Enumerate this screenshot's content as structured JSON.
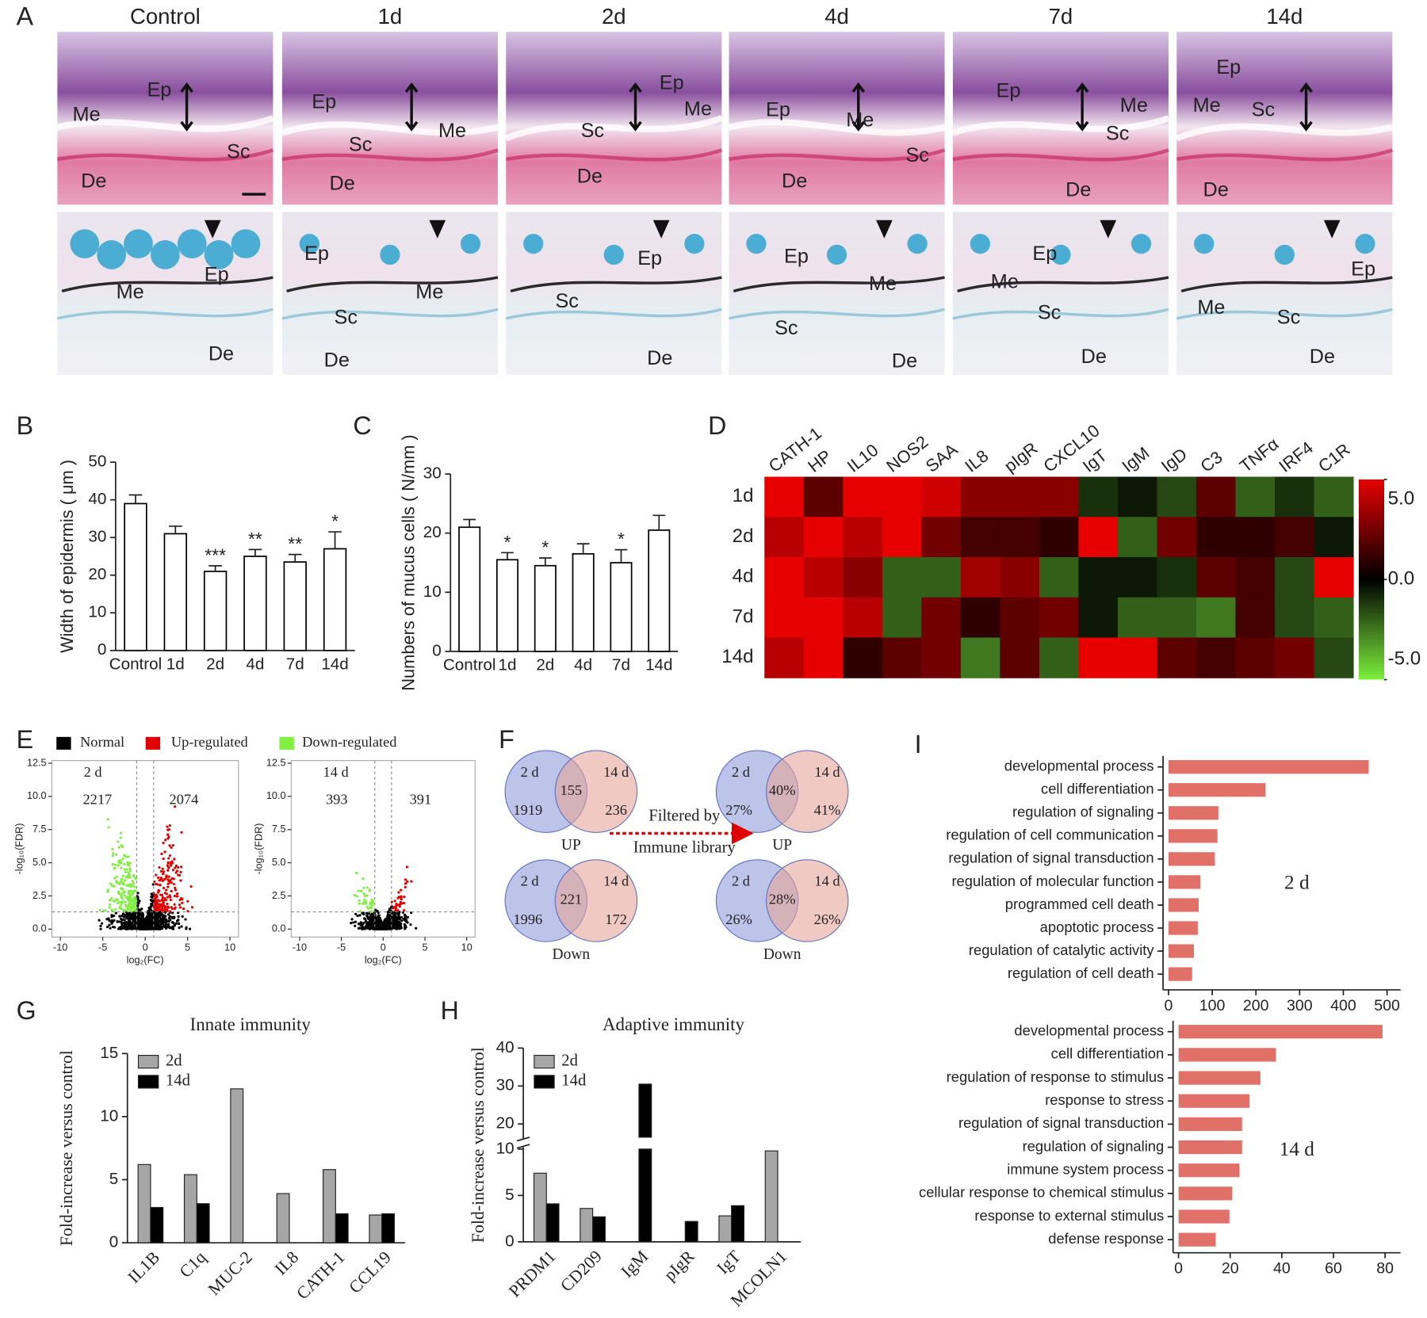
{
  "panel_A": {
    "label": "A",
    "columns": [
      "Control",
      "1d",
      "2d",
      "4d",
      "7d",
      "14d"
    ],
    "top_labels": [
      [
        "Ep",
        "Me",
        "Sc",
        "De"
      ],
      [
        "Ep",
        "Sc",
        "Me",
        "De"
      ],
      [
        "Ep",
        "Me",
        "Sc",
        "De"
      ],
      [
        "Ep",
        "Me",
        "Sc",
        "De"
      ],
      [
        "Ep",
        "Me",
        "Sc",
        "De"
      ],
      [
        "Ep",
        "Me",
        "Sc",
        "De"
      ]
    ],
    "bottom_labels": [
      [
        "Ep",
        "Me",
        "De"
      ],
      [
        "Ep",
        "Me",
        "Sc",
        "De"
      ],
      [
        "Ep",
        "Sc",
        "De"
      ],
      [
        "Ep",
        "Me",
        "Sc",
        "De"
      ],
      [
        "Ep",
        "Me",
        "Sc",
        "De"
      ],
      [
        "Ep",
        "Me",
        "Sc",
        "De"
      ]
    ]
  },
  "panel_F": {
    "label": "F",
    "arrow_text": [
      "Filtered by",
      "Immune library"
    ],
    "venns": [
      {
        "left": "2 d",
        "right": "14 d",
        "left_only": 1919,
        "both": 155,
        "right_only": 236,
        "caption": "UP"
      },
      {
        "left": "2 d",
        "right": "14 d",
        "left_only": 1996,
        "both": 221,
        "right_only": 172,
        "caption": "Down"
      },
      {
        "left": "2 d",
        "right": "14 d",
        "left_only": "27%",
        "both": "40%",
        "right_only": "41%",
        "caption": "UP"
      },
      {
        "left": "2 d",
        "right": "14 d",
        "left_only": "26%",
        "both": "28%",
        "right_only": "26%",
        "caption": "Down"
      }
    ]
  },
  "chart_data": [
    {
      "panel": "B",
      "type": "bar",
      "y_label": "Width of epidermis ( μm )",
      "categories": [
        "Control",
        "1d",
        "2d",
        "4d",
        "7d",
        "14d"
      ],
      "values": [
        39,
        31,
        21,
        25,
        23.5,
        27
      ],
      "errors": [
        2.3,
        2,
        1.5,
        1.8,
        2,
        4.5
      ],
      "significance": [
        null,
        null,
        "***",
        "**",
        "**",
        "*"
      ],
      "color": "#ffffff",
      "edgecolor": "#000000",
      "ylim": [
        0,
        50
      ],
      "yticks": [
        0,
        10,
        20,
        30,
        40,
        50
      ]
    },
    {
      "panel": "C",
      "type": "bar",
      "y_label": "Numbers of mucus cells ( N/mm )",
      "categories": [
        "Control",
        "1d",
        "2d",
        "4d",
        "7d",
        "14d"
      ],
      "values": [
        21,
        15.5,
        14.5,
        16.5,
        15,
        20.5
      ],
      "errors": [
        1.3,
        1.2,
        1.3,
        1.7,
        2.2,
        2.5
      ],
      "significance": [
        null,
        "*",
        "*",
        null,
        "*",
        null
      ],
      "color": "#ffffff",
      "edgecolor": "#000000",
      "ylim": [
        0,
        30
      ],
      "yticks": [
        0,
        10,
        20,
        30
      ]
    },
    {
      "panel": "D",
      "type": "heatmap",
      "rows": [
        "1d",
        "2d",
        "4d",
        "7d",
        "14d"
      ],
      "columns": [
        "CATH-1",
        "HP",
        "IL10",
        "NOS2",
        "SAA",
        "IL8",
        "pIgR",
        "CXCL10",
        "IgT",
        "IgM",
        "IgD",
        "C3",
        "TNFα",
        "IRF4",
        "C1R"
      ],
      "values": [
        [
          5,
          2,
          5,
          5,
          4.5,
          3,
          3,
          3,
          -1,
          -0.5,
          -1.5,
          2,
          -2,
          -1,
          -2
        ],
        [
          4,
          5,
          4,
          5,
          2.5,
          1.5,
          1.5,
          1,
          5,
          -2,
          2.5,
          1,
          1,
          1.5,
          -0.5
        ],
        [
          5,
          4,
          3,
          -2,
          -2,
          3.5,
          3,
          -2,
          -0.5,
          -0.5,
          -1,
          2,
          1.5,
          -1.5,
          5
        ],
        [
          5,
          5,
          4,
          -2,
          2.5,
          1,
          2,
          2.5,
          -0.5,
          -2,
          -2,
          -2.5,
          1.5,
          -1.5,
          -2
        ],
        [
          4,
          5,
          1,
          2,
          2.5,
          -2.5,
          2,
          -2,
          5,
          5,
          2,
          1.5,
          2,
          2.5,
          -1.5
        ]
      ],
      "colorbar": {
        "lim": [
          -5,
          5
        ],
        "colors": [
          "#7df03c",
          "#000000",
          "#e60000"
        ],
        "ticks": [
          {
            "value": 5,
            "label": "5.0"
          },
          {
            "value": 0,
            "label": "0.0"
          },
          {
            "value": -5,
            "label": "-5.0"
          }
        ]
      }
    },
    {
      "panel": "E",
      "type": "volcano",
      "legend": [
        {
          "name": "Normal",
          "color": "#000000"
        },
        {
          "name": "Up-regulated",
          "color": "#e00000"
        },
        {
          "name": "Down-regulated",
          "color": "#80f040"
        }
      ],
      "plots": [
        {
          "title": "2 d",
          "down_count": 2217,
          "up_count": 2074
        },
        {
          "title": "14 d",
          "down_count": 393,
          "up_count": 391
        }
      ],
      "x_label": "log₂(FC)",
      "y_label": "-log₁₀(FDR)",
      "fc_threshold": [
        -1,
        1
      ],
      "fdr_threshold": 1.3,
      "xlim": [
        -11,
        11
      ],
      "xticks": [
        -10,
        -5,
        0,
        5,
        10
      ],
      "ylim": [
        -0.6,
        12.7
      ],
      "yticks": [
        {
          "value": 0,
          "label": "0.0"
        },
        {
          "value": 2.5,
          "label": "2.5"
        },
        {
          "value": 5,
          "label": "5.0"
        },
        {
          "value": 7.5,
          "label": "7.5"
        },
        {
          "value": 10,
          "label": "10.0"
        },
        {
          "value": 12.5,
          "label": "12.5"
        }
      ]
    },
    {
      "panel": "G",
      "type": "grouped_bar",
      "title": "Innate immunity",
      "y_label": "Fold-increase versus control",
      "categories": [
        "IL1B",
        "C1q",
        "MUC-2",
        "IL8",
        "CATH-1",
        "CCL19"
      ],
      "series": [
        {
          "name": "2d",
          "color": "#a6a6a6",
          "values": [
            6.2,
            5.4,
            12.2,
            3.9,
            5.8,
            2.2
          ]
        },
        {
          "name": "14d",
          "color": "#000000",
          "values": [
            2.8,
            3.1,
            null,
            null,
            2.3,
            2.3
          ]
        }
      ],
      "ylim": [
        0,
        15
      ],
      "yticks": [
        0,
        5,
        10,
        15
      ]
    },
    {
      "panel": "H",
      "type": "grouped_bar",
      "title": "Adaptive immunity",
      "y_label": "Fold-increase versus control",
      "categories": [
        "PRDM1",
        "CD209",
        "IgM",
        "pIgR",
        "IgT",
        "MCOLN1"
      ],
      "series": [
        {
          "name": "2d",
          "color": "#a6a6a6",
          "values": [
            7.4,
            3.6,
            null,
            null,
            2.8,
            9.8
          ]
        },
        {
          "name": "14d",
          "color": "#000000",
          "values": [
            4.1,
            2.7,
            30.5,
            2.2,
            3.9,
            null
          ]
        }
      ],
      "ylim": [
        0,
        40
      ],
      "y_break": [
        10,
        16.5
      ],
      "yticks": [
        0,
        5,
        10,
        20,
        30,
        40
      ]
    },
    {
      "panel": "I",
      "type": "barh",
      "annotation": "2 d",
      "color": "#e07068",
      "categories": [
        "developmental process",
        "cell differentiation",
        "regulation of signaling",
        "regulation of cell communication",
        "regulation of signal transduction",
        "regulation of molecular function",
        "programmed cell death",
        "apoptotic process",
        "regulation of catalytic activity",
        "regulation of cell death"
      ],
      "values": [
        458,
        222,
        114,
        112,
        106,
        73,
        69,
        67,
        58,
        54
      ],
      "xlim": [
        0,
        531
      ],
      "xticks": [
        0,
        100,
        200,
        300,
        400,
        500
      ]
    },
    {
      "type": "barh",
      "annotation": "14 d",
      "color": "#e07068",
      "categories": [
        "developmental process",
        "cell differentiation",
        "regulation of response to stimulus",
        "response to stress",
        "regulation of signal transduction",
        "regulation of signaling",
        "immune system process",
        "cellular response to chemical stimulus",
        "response to external stimulus",
        "defense response"
      ],
      "values": [
        79,
        37.7,
        31.7,
        27.5,
        24.6,
        24.6,
        23.6,
        20.8,
        19.7,
        14.4
      ],
      "xlim": [
        0,
        86
      ],
      "xticks": [
        0,
        20,
        40,
        60,
        80
      ]
    }
  ]
}
